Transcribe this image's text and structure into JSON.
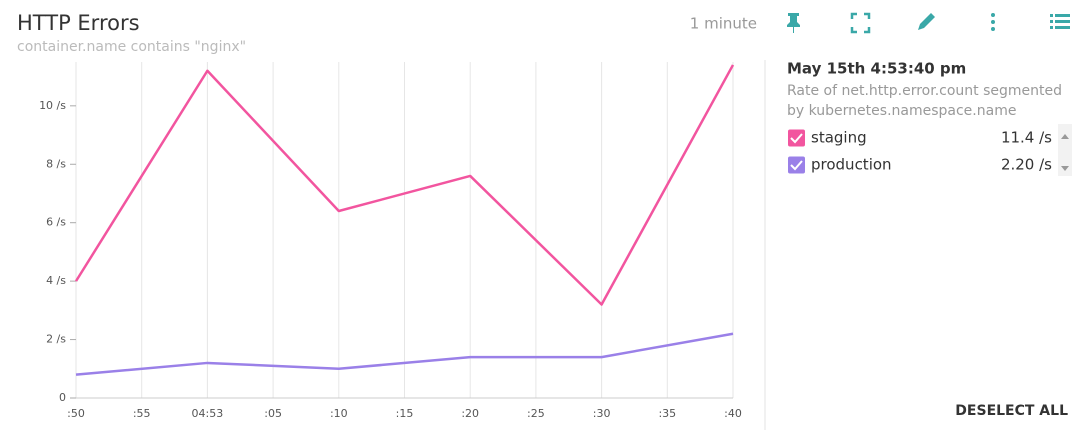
{
  "header": {
    "title": "HTTP Errors",
    "subtitle": "container.name contains \"nginx\"",
    "time_range": "1 minute"
  },
  "panel": {
    "timestamp": "May 15th 4:53:40 pm",
    "description_lines": [
      "Rate of net.http.error.count segmented",
      "by kubernetes.namespace.name"
    ],
    "readouts": [
      "11.4 /s",
      "2.20 /s"
    ],
    "action": "DESELECT ALL"
  },
  "chart_data": {
    "type": "line",
    "x": [
      ":50",
      "04:53",
      ":10",
      ":20",
      ":30",
      ":40"
    ],
    "xticks": [
      ":50",
      ":55",
      "04:53",
      ":05",
      ":10",
      ":15",
      ":20",
      ":25",
      ":30",
      ":35",
      ":40"
    ],
    "series": [
      {
        "name": "staging",
        "color": "#f2559f",
        "values": [
          4.0,
          11.2,
          6.4,
          7.6,
          3.2,
          11.4
        ]
      },
      {
        "name": "production",
        "color": "#9a80e8",
        "values": [
          0.8,
          1.2,
          1.0,
          1.4,
          1.4,
          2.2
        ]
      }
    ],
    "ylim": [
      0,
      11.5
    ],
    "yticks": [
      0,
      {
        "value": 2,
        "label": "2 /s"
      },
      {
        "value": 4,
        "label": "4 /s"
      },
      {
        "value": 6,
        "label": "6 /s"
      },
      {
        "value": 8,
        "label": "8 /s"
      },
      {
        "value": 10,
        "label": "10 /s"
      }
    ],
    "grid": true
  }
}
